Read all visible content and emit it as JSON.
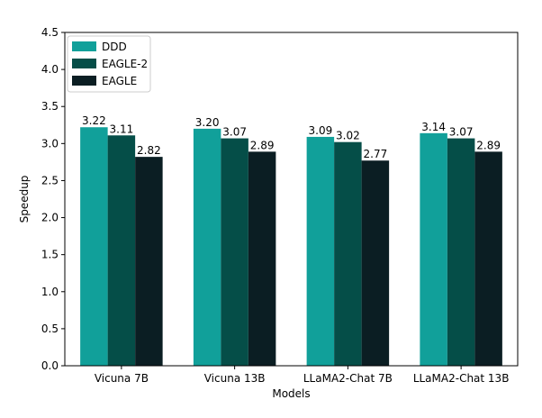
{
  "chart_data": {
    "type": "bar",
    "title": "",
    "xlabel": "Models",
    "ylabel": "Speedup",
    "categories": [
      "Vicuna 7B",
      "Vicuna 13B",
      "LLaMA2-Chat 7B",
      "LLaMA2-Chat 13B"
    ],
    "series": [
      {
        "name": "DDD",
        "values": [
          3.22,
          3.2,
          3.09,
          3.14
        ],
        "color": "#11a09a"
      },
      {
        "name": "EAGLE-2",
        "values": [
          3.11,
          3.07,
          3.02,
          3.07
        ],
        "color": "#054e48"
      },
      {
        "name": "EAGLE",
        "values": [
          2.82,
          2.89,
          2.77,
          2.89
        ],
        "color": "#0b1e23"
      }
    ],
    "data_labels": [
      [
        "3.22",
        "3.20",
        "3.09",
        "3.14"
      ],
      [
        "3.11",
        "3.07",
        "3.02",
        "3.07"
      ],
      [
        "2.82",
        "2.89",
        "2.77",
        "2.89"
      ]
    ],
    "ylim": [
      0,
      4.5
    ],
    "yticks": [
      0.0,
      0.5,
      1.0,
      1.5,
      2.0,
      2.5,
      3.0,
      3.5,
      4.0,
      4.5
    ],
    "ytick_labels": [
      "0.0",
      "0.5",
      "1.0",
      "1.5",
      "2.0",
      "2.5",
      "3.0",
      "3.5",
      "4.0",
      "4.5"
    ],
    "grid": false,
    "legend_position": "top-left"
  }
}
